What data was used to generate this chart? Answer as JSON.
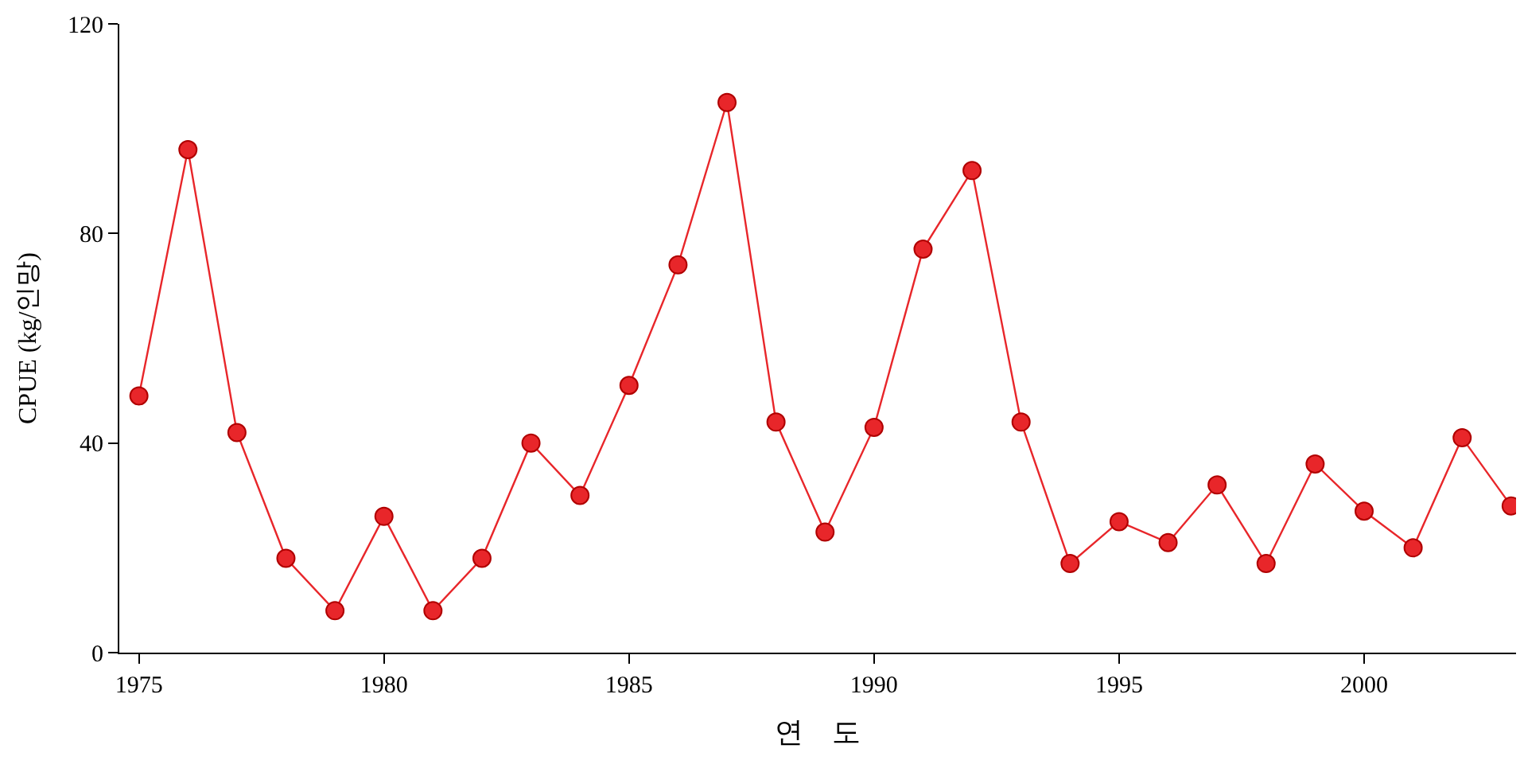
{
  "chart_data": {
    "type": "line",
    "xlabel": "연    도",
    "ylabel": "CPUE (kg/인망)",
    "x": [
      1975,
      1976,
      1977,
      1978,
      1979,
      1980,
      1981,
      1982,
      1983,
      1984,
      1985,
      1986,
      1987,
      1988,
      1989,
      1990,
      1991,
      1992,
      1993,
      1994,
      1995,
      1996,
      1997,
      1998,
      1999,
      2000,
      2001,
      2002,
      2003
    ],
    "series": [
      {
        "color": "#e8262a",
        "values": [
          49,
          96,
          42,
          18,
          8,
          26,
          8,
          18,
          40,
          30,
          51,
          74,
          105,
          44,
          23,
          43,
          77,
          92,
          44,
          17,
          25,
          21,
          32,
          17,
          36,
          27,
          20,
          41,
          28
        ]
      }
    ],
    "xlim": [
      1974.6,
      2003.1
    ],
    "xticks": [
      1975,
      1980,
      1985,
      1990,
      1995,
      2000
    ],
    "ylim": [
      0,
      120
    ],
    "yticks": [
      0,
      40,
      80,
      120
    ],
    "marker": "circle",
    "line_style": "solid"
  }
}
